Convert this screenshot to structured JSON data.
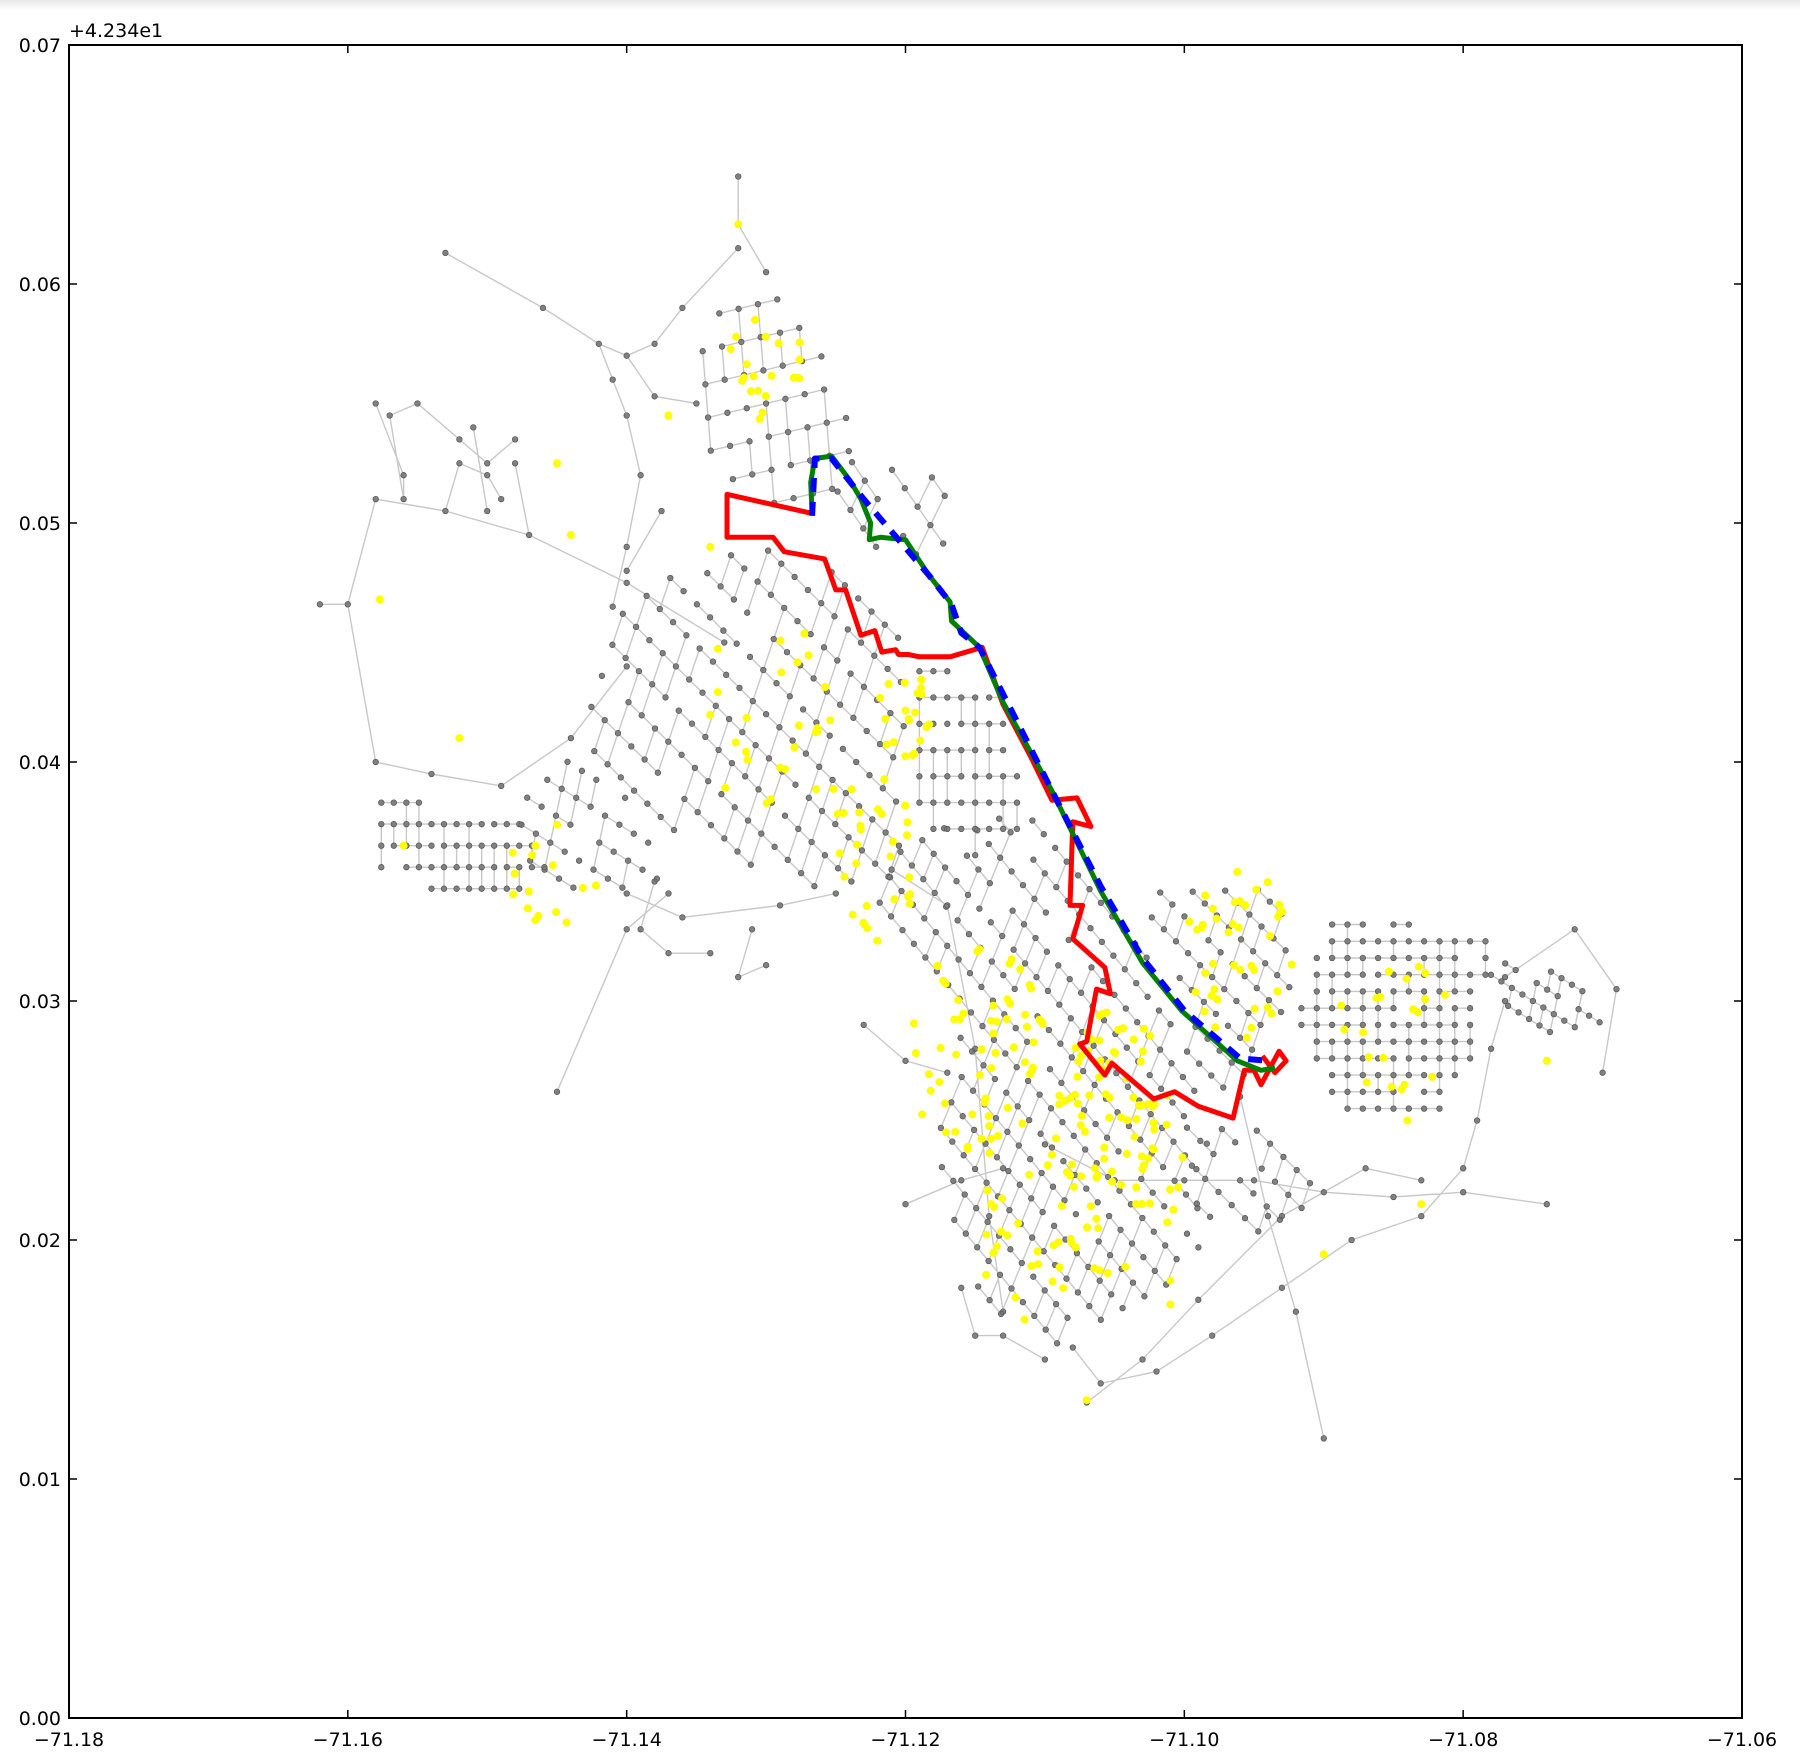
{
  "chart_data": {
    "type": "scatter",
    "title": "",
    "xlabel": "",
    "ylabel": "",
    "xlim": [
      -71.18,
      -71.06
    ],
    "ylim": [
      0.0,
      0.07
    ],
    "y_offset_text": "+4.234e1",
    "x_ticks": [
      -71.18,
      -71.16,
      -71.14,
      -71.12,
      -71.1,
      -71.08,
      -71.06
    ],
    "x_tick_labels": [
      "−71.18",
      "−71.16",
      "−71.14",
      "−71.12",
      "−71.10",
      "−71.08",
      "−71.06"
    ],
    "y_ticks": [
      0.0,
      0.01,
      0.02,
      0.03,
      0.04,
      0.05,
      0.06,
      0.07
    ],
    "y_tick_labels": [
      "0.00",
      "0.01",
      "0.02",
      "0.03",
      "0.04",
      "0.05",
      "0.06",
      "0.07"
    ],
    "grid": false,
    "colors": {
      "edges": "#c8c8c8",
      "nodes": "#808080",
      "highlight_nodes": "#ffff00",
      "route_red": "#ff0000",
      "route_green": "#008000",
      "route_blue_dashed": "#0000ff"
    },
    "series": [
      {
        "kind": "path",
        "color": "#ff0000",
        "points": [
          [
            -71.1267,
            0.0504
          ],
          [
            -71.1328,
            0.0512
          ],
          [
            -71.1328,
            0.0494
          ],
          [
            -71.1295,
            0.0494
          ],
          [
            -71.1287,
            0.0488
          ],
          [
            -71.1258,
            0.0485
          ],
          [
            -71.125,
            0.0472
          ],
          [
            -71.1243,
            0.0472
          ],
          [
            -71.1232,
            0.0453
          ],
          [
            -71.1222,
            0.0455
          ],
          [
            -71.1217,
            0.0446
          ],
          [
            -71.1207,
            0.0447
          ],
          [
            -71.1205,
            0.0445
          ],
          [
            -71.1198,
            0.0445
          ],
          [
            -71.119,
            0.0444
          ],
          [
            -71.1168,
            0.0444
          ],
          [
            -71.1145,
            0.0448
          ],
          [
            -71.113,
            0.0424
          ],
          [
            -71.111,
            0.0402
          ],
          [
            -71.1095,
            0.0384
          ],
          [
            -71.1077,
            0.0385
          ],
          [
            -71.1067,
            0.0373
          ],
          [
            -71.108,
            0.0375
          ],
          [
            -71.1082,
            0.034
          ],
          [
            -71.1073,
            0.034
          ],
          [
            -71.108,
            0.0326
          ],
          [
            -71.1057,
            0.0314
          ],
          [
            -71.1053,
            0.0303
          ],
          [
            -71.1063,
            0.0305
          ],
          [
            -71.107,
            0.0283
          ],
          [
            -71.1075,
            0.0282
          ],
          [
            -71.1057,
            0.0269
          ],
          [
            -71.1052,
            0.0274
          ],
          [
            -71.1022,
            0.0259
          ],
          [
            -71.1007,
            0.0262
          ],
          [
            -71.099,
            0.0256
          ],
          [
            -71.0965,
            0.0251
          ],
          [
            -71.0957,
            0.0271
          ],
          [
            -71.095,
            0.0271
          ],
          [
            -71.0945,
            0.0265
          ],
          [
            -71.0932,
            0.0279
          ],
          [
            -71.0927,
            0.0275
          ],
          [
            -71.0935,
            0.027
          ],
          [
            -71.0944,
            0.0277
          ]
        ]
      },
      {
        "kind": "path",
        "color": "#008000",
        "points": [
          [
            -71.1267,
            0.0504
          ],
          [
            -71.1268,
            0.0517
          ],
          [
            -71.1265,
            0.0527
          ],
          [
            -71.1253,
            0.0528
          ],
          [
            -71.124,
            0.0518
          ],
          [
            -71.1232,
            0.051
          ],
          [
            -71.1225,
            0.05
          ],
          [
            -71.1226,
            0.0493
          ],
          [
            -71.1218,
            0.0494
          ],
          [
            -71.12,
            0.0493
          ],
          [
            -71.1183,
            0.0478
          ],
          [
            -71.1168,
            0.0467
          ],
          [
            -71.1167,
            0.0459
          ],
          [
            -71.1147,
            0.0448
          ],
          [
            -71.113,
            0.0425
          ],
          [
            -71.1095,
            0.0388
          ],
          [
            -71.106,
            0.0346
          ],
          [
            -71.103,
            0.0316
          ],
          [
            -71.1002,
            0.0296
          ],
          [
            -71.0962,
            0.0275
          ],
          [
            -71.0945,
            0.0271
          ],
          [
            -71.0935,
            0.0272
          ]
        ]
      },
      {
        "kind": "path",
        "color": "#0000ff",
        "dashed": true,
        "points": [
          [
            -71.1267,
            0.0503
          ],
          [
            -71.1265,
            0.0527
          ],
          [
            -71.1253,
            0.0527
          ],
          [
            -71.123,
            0.051
          ],
          [
            -71.1205,
            0.0493
          ],
          [
            -71.1183,
            0.0478
          ],
          [
            -71.1167,
            0.0466
          ],
          [
            -71.116,
            0.0454
          ],
          [
            -71.1147,
            0.0448
          ],
          [
            -71.112,
            0.0417
          ],
          [
            -71.1095,
            0.0388
          ],
          [
            -71.106,
            0.0348
          ],
          [
            -71.103,
            0.0318
          ],
          [
            -71.1,
            0.0296
          ],
          [
            -71.096,
            0.0276
          ],
          [
            -71.094,
            0.0275
          ]
        ]
      }
    ]
  }
}
